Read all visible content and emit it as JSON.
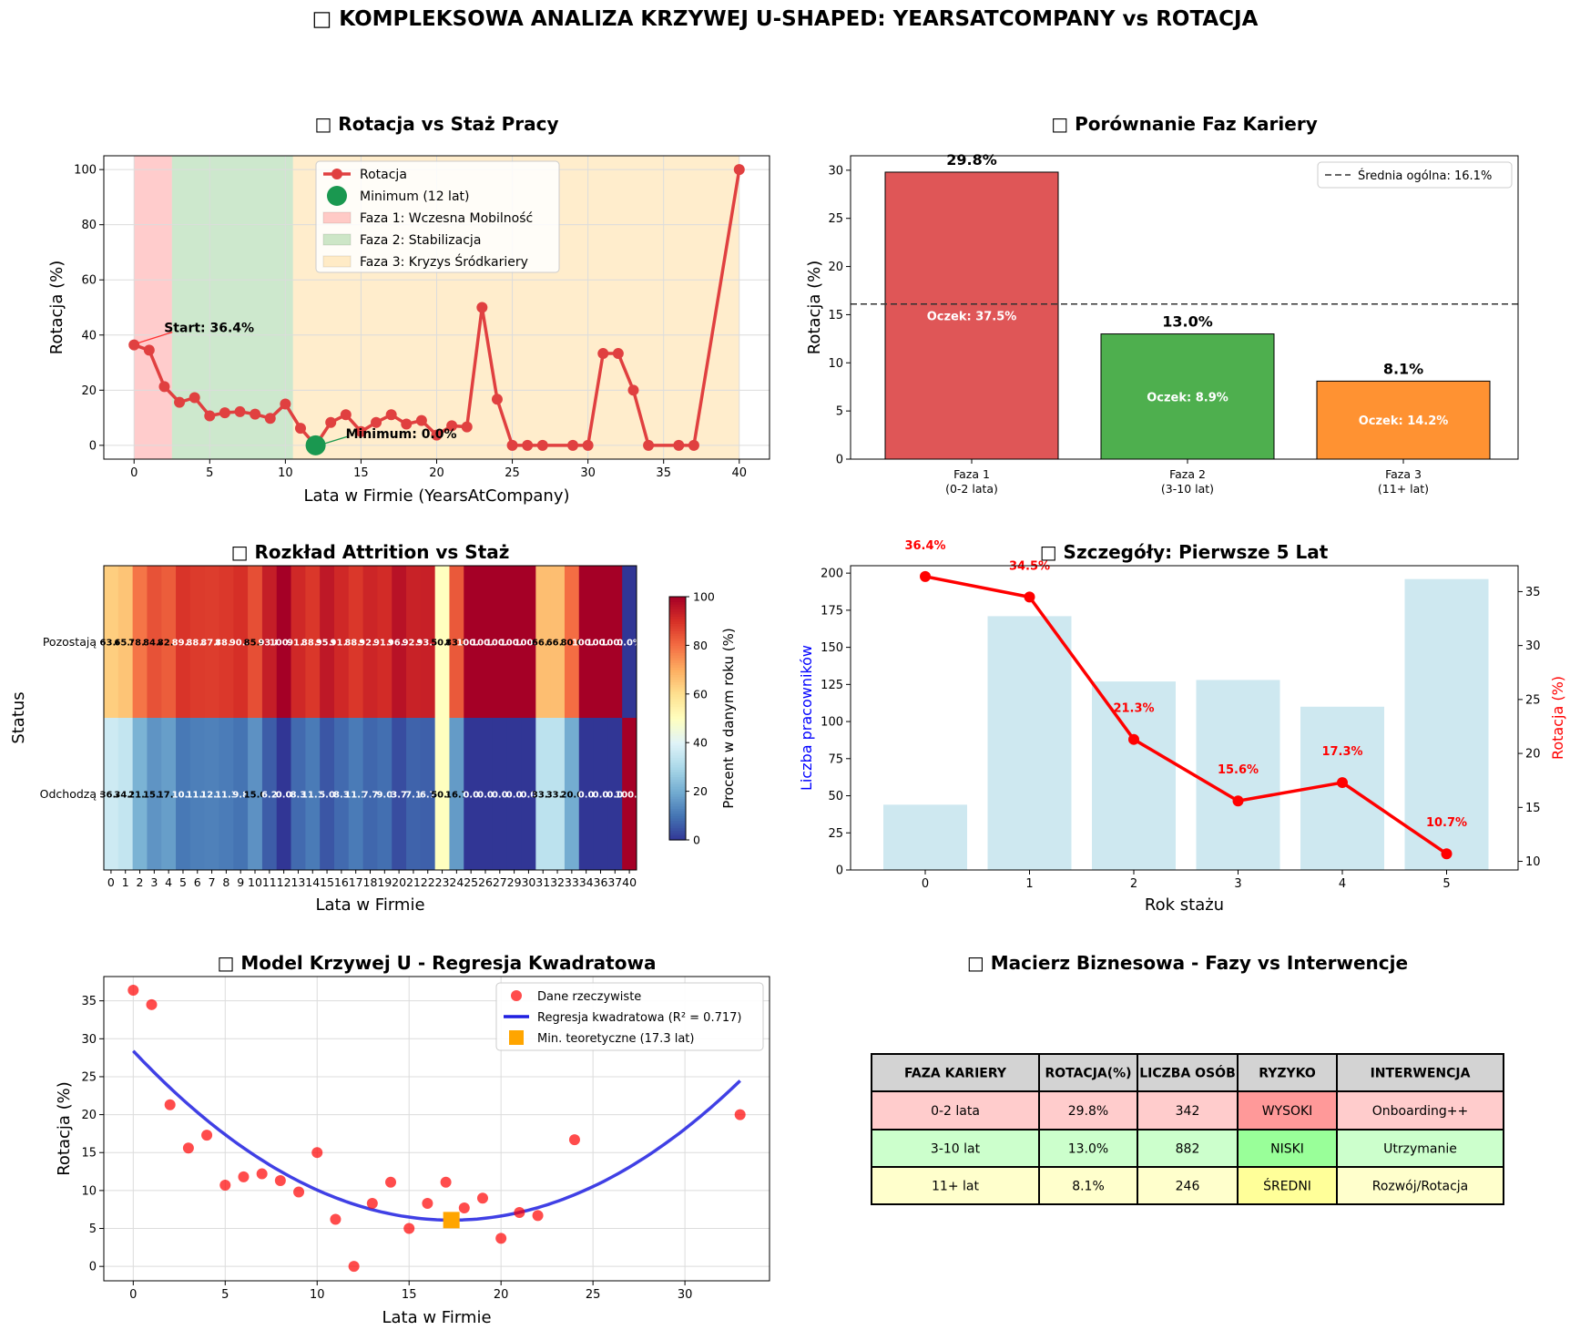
{
  "page_title": "□ KOMPLEKSOWA ANALIZA KRZYWEJ U-SHAPED: YEARSATCOMPANY vs ROTACJA",
  "colors": {
    "phase1": "#d62728",
    "phase2": "#2ca02c",
    "phase3": "#ff7f0e",
    "line_red": "#e04040",
    "min_green": "#1a9850",
    "blue_fit": "#1f1fe0",
    "light_blue": "#add8e6",
    "heat_low": "#313695",
    "heat_high": "#a50026"
  },
  "chart_data": [
    {
      "id": "p1",
      "type": "line",
      "title": "□ Rotacja vs Staż Pracy",
      "xlabel": "Lata w Firmie (YearsAtCompany)",
      "ylabel": "Rotacja (%)",
      "xlim": [
        -2,
        42
      ],
      "ylim": [
        -5,
        105
      ],
      "xticks": [
        0,
        5,
        10,
        15,
        20,
        25,
        30,
        35,
        40
      ],
      "yticks": [
        0,
        20,
        40,
        60,
        80,
        100
      ],
      "grid": true,
      "legend_position": "top-center",
      "phases": [
        {
          "label": "Faza 1: Wczesna Mobilność",
          "x_start": 0,
          "x_end": 2.5
        },
        {
          "label": "Faza 2: Stabilizacja",
          "x_start": 2.5,
          "x_end": 10.5
        },
        {
          "label": "Faza 3: Kryzys Śródkariery",
          "x_start": 10.5,
          "x_end": 40
        }
      ],
      "series": [
        {
          "name": "Rotacja",
          "x": [
            0,
            1,
            2,
            3,
            4,
            5,
            6,
            7,
            8,
            9,
            10,
            11,
            12,
            13,
            14,
            15,
            16,
            17,
            18,
            19,
            20,
            21,
            22,
            23,
            24,
            25,
            26,
            27,
            29,
            30,
            31,
            32,
            33,
            34,
            36,
            37,
            40
          ],
          "y": [
            36.4,
            34.5,
            21.3,
            15.6,
            17.3,
            10.7,
            11.8,
            12.2,
            11.3,
            9.8,
            15.0,
            6.2,
            0.0,
            8.3,
            11.1,
            5.0,
            8.3,
            11.1,
            7.7,
            9.0,
            3.7,
            7.1,
            6.7,
            50.0,
            16.7,
            0,
            0,
            0,
            0,
            0,
            33.3,
            33.3,
            20.0,
            0,
            0,
            0,
            100.0
          ]
        }
      ],
      "minimum": {
        "label": "Minimum (12 lat)",
        "x": 12,
        "y": 0
      },
      "annotations": [
        {
          "text": "Start: 36.4%",
          "x": 0,
          "y": 36.4
        },
        {
          "text": "Minimum: 0.0%",
          "x": 12,
          "y": 0
        }
      ]
    },
    {
      "id": "p2",
      "type": "bar",
      "title": "□ Porównanie Faz Kariery",
      "ylabel": "Rotacja (%)",
      "categories": [
        "Faza 1\n(0-2 lata)",
        "Faza 2\n(3-10 lat)",
        "Faza 3\n(11+ lat)"
      ],
      "values": [
        29.8,
        13.0,
        8.1
      ],
      "value_labels": [
        "29.8%",
        "13.0%",
        "8.1%"
      ],
      "expected_labels": [
        "Oczek: 37.5%",
        "Oczek: 8.9%",
        "Oczek: 14.2%"
      ],
      "mean_line": {
        "label": "Średnia ogólna: 16.1%",
        "value": 16.1
      },
      "ylim": [
        0,
        31.5
      ],
      "yticks": [
        0,
        5,
        10,
        15,
        20,
        25,
        30
      ],
      "legend_position": "top-right"
    },
    {
      "id": "p3",
      "type": "heatmap",
      "title": "□ Rozkład Attrition vs Staż",
      "xlabel": "Lata w Firmie",
      "ylabel": "Status",
      "colorbar_label": "Procent w danym roku (%)",
      "colorbar_ticks": [
        0,
        20,
        40,
        60,
        80,
        100
      ],
      "x": [
        0,
        1,
        2,
        3,
        4,
        5,
        6,
        7,
        8,
        9,
        10,
        11,
        12,
        13,
        14,
        15,
        16,
        17,
        18,
        19,
        20,
        21,
        22,
        23,
        24,
        25,
        26,
        27,
        29,
        30,
        31,
        32,
        33,
        34,
        36,
        37,
        40
      ],
      "x_tick_labels": [
        "0",
        "1",
        "2",
        "3",
        "4",
        "5",
        "6",
        "7",
        "8",
        "9",
        "10",
        "11",
        "12",
        "13",
        "14",
        "15",
        "16",
        "17",
        "18",
        "19",
        "20",
        "21",
        "22",
        "23",
        "24",
        "25",
        "26",
        "27",
        "29",
        "30",
        "31",
        "32",
        "33",
        "34",
        "36",
        "37",
        "40"
      ],
      "rows": [
        "Pozostają",
        "Odchodzą"
      ],
      "cell_labels": [
        [
          "63.6",
          "65.5",
          "78.7",
          "84.4",
          "82.7",
          "89.3",
          "88.2",
          "87.8",
          "88.7",
          "90.2",
          "85.0",
          "93.8",
          "100.0",
          "91.7",
          "88.9",
          "95.0",
          "91.7",
          "88.9",
          "92.3",
          "91.0",
          "96.3",
          "92.9",
          "93.3",
          "50.0",
          "83.3",
          "100.0",
          "100.0",
          "100.0",
          "100.0",
          "100.0",
          "66.7",
          "66.7",
          "80.0",
          "100.0",
          "100.0",
          "100.0",
          "0.0%"
        ],
        [
          "36.4",
          "34.5",
          "21.3",
          "15.6",
          "17.3",
          "10.7",
          "11.8",
          "12.2",
          "11.3",
          "9.8",
          "15.0",
          "6.2",
          "0.0",
          "8.3",
          "11.1",
          "5.0",
          "8.3",
          "11.1",
          "7.7",
          "9.0",
          "3.7",
          "7.1",
          "6.7",
          "50.0",
          "16.7",
          "0.0",
          "0.0",
          "0.0",
          "0.0",
          "0.0",
          "33.3",
          "33.3",
          "20.0",
          "0.0",
          "0.0",
          "0.0",
          "100.0"
        ]
      ],
      "values": [
        [
          63.6,
          65.5,
          78.7,
          84.4,
          82.7,
          89.3,
          88.2,
          87.8,
          88.7,
          90.2,
          85.0,
          93.8,
          100,
          91.7,
          88.9,
          95.0,
          91.7,
          88.9,
          92.3,
          91.0,
          96.3,
          92.9,
          93.3,
          50.0,
          83.3,
          100,
          100,
          100,
          100,
          100,
          66.7,
          66.7,
          80.0,
          100,
          100,
          100,
          0
        ],
        [
          36.4,
          34.5,
          21.3,
          15.6,
          17.3,
          10.7,
          11.8,
          12.2,
          11.3,
          9.8,
          15.0,
          6.2,
          0,
          8.3,
          11.1,
          5.0,
          8.3,
          11.1,
          7.7,
          9.0,
          3.7,
          7.1,
          6.7,
          50.0,
          16.7,
          0,
          0,
          0,
          0,
          0,
          33.3,
          33.3,
          20.0,
          0,
          0,
          0,
          100
        ]
      ]
    },
    {
      "id": "p4",
      "type": "bar",
      "title": "□ Szczegóły: Pierwsze 5 Lat",
      "xlabel": "Rok stażu",
      "ylabel": "Liczba pracowników",
      "ylabel_right": "Rotacja (%)",
      "categories": [
        "0",
        "1",
        "2",
        "3",
        "4",
        "5"
      ],
      "values": [
        44,
        171,
        127,
        128,
        110,
        196
      ],
      "ylim": [
        0,
        205
      ],
      "yticks": [
        0,
        25,
        50,
        75,
        100,
        125,
        150,
        175,
        200
      ],
      "y2lim": [
        9.2,
        37.4
      ],
      "y2ticks": [
        10,
        15,
        20,
        25,
        30,
        35
      ],
      "line_series": {
        "name": "Rotacja",
        "values": [
          36.4,
          34.5,
          21.3,
          15.6,
          17.3,
          10.7
        ],
        "labels": [
          "36.4%",
          "34.5%",
          "21.3%",
          "15.6%",
          "17.3%",
          "10.7%"
        ]
      }
    },
    {
      "id": "p5",
      "type": "scatter",
      "title": "□ Model Krzywej U - Regresja Kwadratowa",
      "xlabel": "Lata w Firmie",
      "ylabel": "Rotacja (%)",
      "xlim": [
        -1.6,
        34.6
      ],
      "ylim": [
        -1.9,
        38.2
      ],
      "xticks": [
        0,
        5,
        10,
        15,
        20,
        25,
        30
      ],
      "yticks": [
        0,
        5,
        10,
        15,
        20,
        25,
        30,
        35
      ],
      "grid": true,
      "legend_position": "top-right",
      "points": {
        "name": "Dane rzeczywiste",
        "x": [
          0,
          1,
          2,
          3,
          4,
          5,
          6,
          7,
          8,
          9,
          10,
          11,
          12,
          13,
          14,
          15,
          16,
          17,
          18,
          19,
          20,
          21,
          22,
          24,
          33
        ],
        "y": [
          36.4,
          34.5,
          21.3,
          15.6,
          17.3,
          10.7,
          11.8,
          12.2,
          11.3,
          9.8,
          15.0,
          6.2,
          0.0,
          8.3,
          11.1,
          5.0,
          8.3,
          11.1,
          7.7,
          9.0,
          3.7,
          7.1,
          6.7,
          16.7,
          20.0
        ]
      },
      "fit": {
        "name": "Regresja kwadratowa (R² = 0.717)",
        "x_range": [
          0,
          33
        ],
        "a": 0.0745,
        "vertex_x": 17.3,
        "vertex_y": 6.1
      },
      "theoretical_min": {
        "name": "Min. teoretyczne (17.3 lat)",
        "x": 17.3,
        "y": 6.1
      }
    }
  ],
  "table": {
    "title": "□ Macierz Biznesowa - Fazy vs Interwencje",
    "headers": [
      "FAZA KARIERY",
      "ROTACJA(%)",
      "LICZBA OSÓB",
      "RYZYKO",
      "INTERWENCJA"
    ],
    "rows": [
      [
        "0-2 lata",
        "29.8%",
        "342",
        "WYSOKI",
        "Onboarding++"
      ],
      [
        "3-10 lat",
        "13.0%",
        "882",
        "NISKI",
        "Utrzymanie"
      ],
      [
        "11+ lat",
        "8.1%",
        "246",
        "ŚREDNI",
        "Rozwój/Rotacja"
      ]
    ],
    "row_colors": [
      "#ffcccc",
      "#ccffcc",
      "#ffffcc"
    ],
    "risk_colors": [
      "#ff9999",
      "#99ff99",
      "#ffff99"
    ],
    "header_color": "#d3d3d3"
  }
}
